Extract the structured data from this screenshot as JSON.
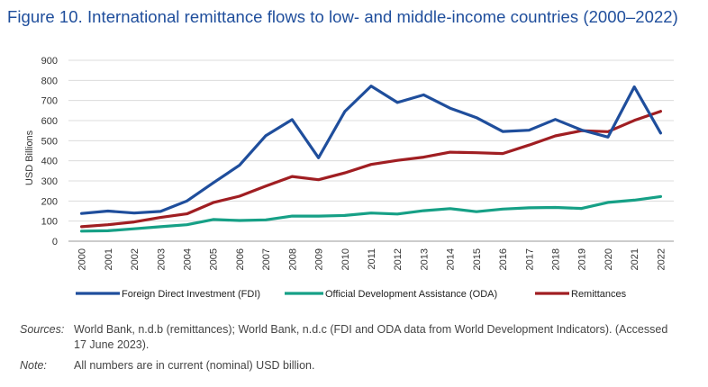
{
  "title": "Figure 10. International remittance flows to low- and middle-income countries (2000–2022)",
  "sources_label": "Sources:",
  "sources_text": "World Bank, n.d.b (remittances); World Bank, n.d.c (FDI and ODA data from World Development Indicators). (Accessed 17  June 2023).",
  "note_label": "Note:",
  "note_text": "All numbers are in current (nominal) USD billion.",
  "chart_data": {
    "type": "line",
    "ylabel": "USD Billions",
    "ylim": [
      0,
      900
    ],
    "yticks": [
      0,
      100,
      200,
      300,
      400,
      500,
      600,
      700,
      800,
      900
    ],
    "grid": true,
    "legend_position": "bottom",
    "x": [
      "2000",
      "2001",
      "2002",
      "2003",
      "2004",
      "2005",
      "2006",
      "2007",
      "2008",
      "2009",
      "2010",
      "2011",
      "2012",
      "2013",
      "2014",
      "2015",
      "2016",
      "2017",
      "2018",
      "2019",
      "2020",
      "2021",
      "2022"
    ],
    "series": [
      {
        "name": "Foreign Direct Investment (FDI)",
        "color": "#1f4e9c",
        "values": [
          138,
          150,
          140,
          148,
          200,
          290,
          378,
          525,
          605,
          415,
          645,
          772,
          690,
          728,
          662,
          615,
          546,
          552,
          606,
          553,
          518,
          768,
          538
        ]
      },
      {
        "name": "Official Development Assistance (ODA)",
        "color": "#16a086",
        "values": [
          50,
          52,
          62,
          72,
          82,
          108,
          103,
          106,
          125,
          125,
          128,
          140,
          135,
          152,
          162,
          147,
          160,
          166,
          168,
          163,
          193,
          204,
          222
        ]
      },
      {
        "name": "Remittances",
        "color": "#a01e22",
        "values": [
          72,
          82,
          96,
          118,
          136,
          192,
          224,
          274,
          322,
          306,
          340,
          382,
          402,
          418,
          443,
          440,
          436,
          478,
          524,
          550,
          545,
          601,
          646
        ]
      }
    ]
  }
}
